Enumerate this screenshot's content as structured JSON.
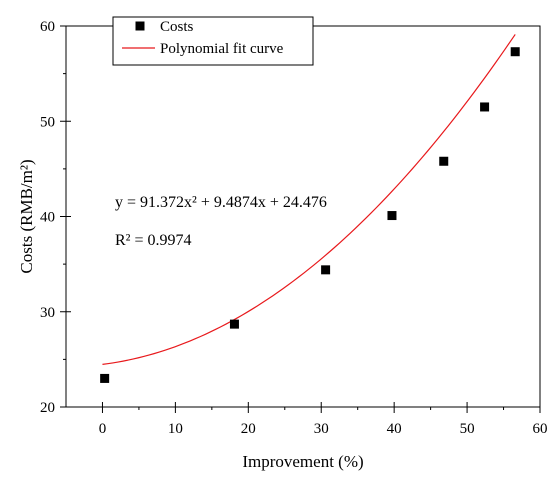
{
  "chart_data": {
    "type": "scatter",
    "xlabel": "Improvement (%)",
    "ylabel": "Costs (RMB/m²)",
    "xlim": [
      -5,
      60
    ],
    "ylim": [
      20,
      60
    ],
    "x_ticks": [
      0,
      10,
      20,
      30,
      40,
      50,
      60
    ],
    "y_ticks": [
      20,
      30,
      40,
      50,
      60
    ],
    "x_tick_labels": [
      "0",
      "10",
      "20",
      "30",
      "40",
      "50",
      "60"
    ],
    "y_tick_labels": [
      "20",
      "30",
      "40",
      "50",
      "60"
    ],
    "grid": false,
    "legend_position": "top-left",
    "series": [
      {
        "name": "Costs",
        "kind": "scatter",
        "marker": "square",
        "color": "#000000",
        "x": [
          0.3,
          18.1,
          30.6,
          39.7,
          46.8,
          52.4,
          56.6
        ],
        "y": [
          23.0,
          28.7,
          34.4,
          40.1,
          45.8,
          51.5,
          57.3
        ]
      },
      {
        "name": "Polynomial fit curve",
        "kind": "line",
        "color": "#e8191c",
        "coefficients": {
          "a": 91.372,
          "b": 9.4874,
          "c": 24.476
        },
        "x_range": [
          0,
          56.6
        ]
      }
    ],
    "annotations": [
      "y = 91.372x² + 9.4874x + 24.476",
      "R² = 0.9974"
    ]
  }
}
